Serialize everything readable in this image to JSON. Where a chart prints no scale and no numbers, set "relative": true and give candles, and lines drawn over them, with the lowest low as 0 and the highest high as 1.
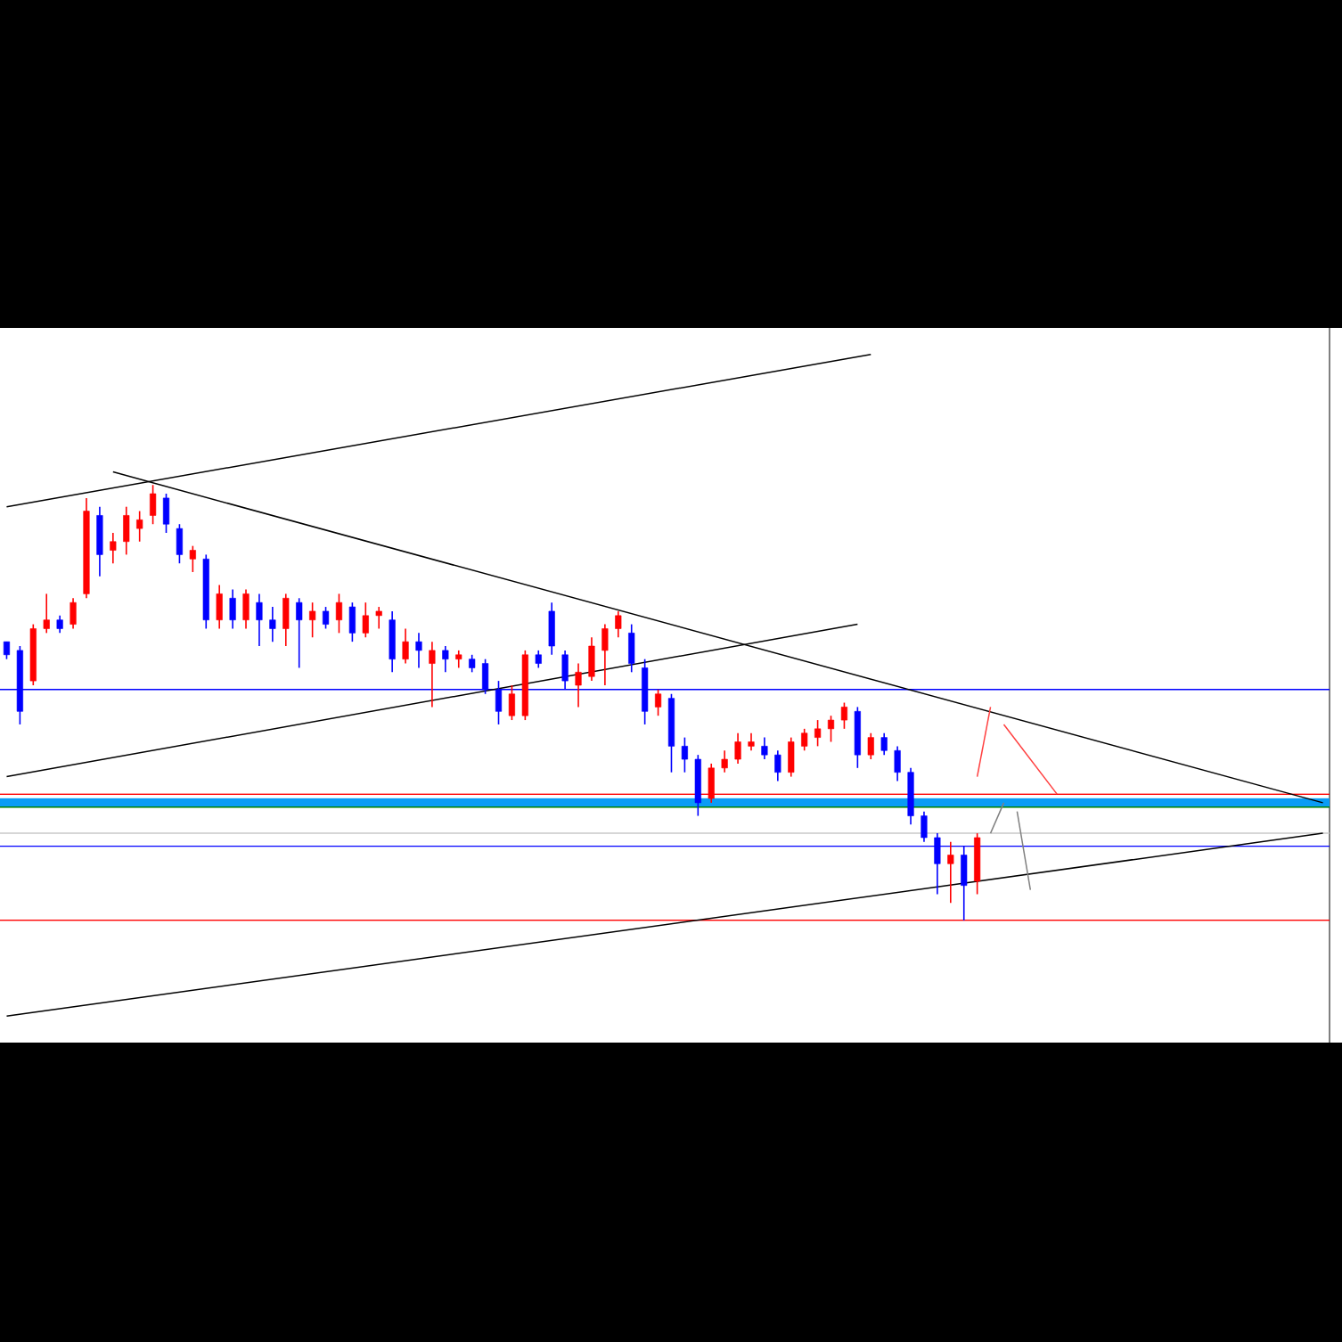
{
  "chart_data": {
    "type": "candlestick",
    "relative": true,
    "categories": [
      null,
      null,
      null,
      null,
      null,
      null,
      null,
      null,
      null,
      null,
      null,
      null,
      null,
      null,
      null,
      null,
      null,
      null,
      null,
      null,
      null,
      null,
      null,
      null,
      null,
      null,
      null,
      null,
      null,
      null,
      null,
      null,
      null,
      null,
      null,
      null,
      null,
      null,
      null,
      null,
      null,
      null,
      null,
      null,
      null,
      null,
      null,
      null,
      null,
      null,
      null,
      null,
      null,
      null,
      null,
      null,
      null,
      null,
      null,
      null,
      null,
      null,
      null,
      null,
      null,
      null,
      null,
      null,
      null,
      null,
      null,
      null,
      null,
      null,
      null,
      null,
      null,
      null,
      null,
      null,
      null,
      null,
      null,
      null,
      null,
      null,
      null,
      null,
      null,
      null,
      null,
      null,
      null,
      null,
      null,
      null,
      null,
      null,
      null,
      null
    ],
    "ohlc": [
      [
        0.64,
        0.64,
        0.6,
        0.61
      ],
      [
        0.62,
        0.63,
        0.45,
        0.48
      ],
      [
        0.55,
        0.68,
        0.54,
        0.67
      ],
      [
        0.67,
        0.75,
        0.66,
        0.69
      ],
      [
        0.69,
        0.7,
        0.66,
        0.67
      ],
      [
        0.68,
        0.74,
        0.67,
        0.73
      ],
      [
        0.75,
        0.97,
        0.74,
        0.94
      ],
      [
        0.93,
        0.95,
        0.79,
        0.84
      ],
      [
        0.85,
        0.89,
        0.82,
        0.87
      ],
      [
        0.87,
        0.95,
        0.84,
        0.93
      ],
      [
        0.9,
        0.94,
        0.87,
        0.92
      ],
      [
        0.93,
        1.0,
        0.91,
        0.98
      ],
      [
        0.97,
        0.98,
        0.89,
        0.91
      ],
      [
        0.9,
        0.91,
        0.82,
        0.84
      ],
      [
        0.83,
        0.86,
        0.8,
        0.85
      ],
      [
        0.83,
        0.84,
        0.67,
        0.69
      ],
      [
        0.69,
        0.77,
        0.67,
        0.75
      ],
      [
        0.74,
        0.76,
        0.67,
        0.69
      ],
      [
        0.69,
        0.76,
        0.67,
        0.75
      ],
      [
        0.73,
        0.75,
        0.63,
        0.69
      ],
      [
        0.69,
        0.72,
        0.64,
        0.67
      ],
      [
        0.67,
        0.75,
        0.63,
        0.74
      ],
      [
        0.73,
        0.74,
        0.58,
        0.69
      ],
      [
        0.69,
        0.73,
        0.65,
        0.71
      ],
      [
        0.71,
        0.72,
        0.67,
        0.68
      ],
      [
        0.69,
        0.75,
        0.66,
        0.73
      ],
      [
        0.72,
        0.73,
        0.64,
        0.66
      ],
      [
        0.66,
        0.73,
        0.65,
        0.7
      ],
      [
        0.7,
        0.72,
        0.67,
        0.71
      ],
      [
        0.69,
        0.71,
        0.57,
        0.6
      ],
      [
        0.6,
        0.67,
        0.59,
        0.64
      ],
      [
        0.64,
        0.66,
        0.58,
        0.62
      ],
      [
        0.59,
        0.64,
        0.49,
        0.62
      ],
      [
        0.62,
        0.63,
        0.57,
        0.6
      ],
      [
        0.6,
        0.62,
        0.58,
        0.61
      ],
      [
        0.6,
        0.61,
        0.57,
        0.58
      ],
      [
        0.59,
        0.6,
        0.52,
        0.53
      ],
      [
        0.53,
        0.55,
        0.45,
        0.48
      ],
      [
        0.47,
        0.54,
        0.46,
        0.52
      ],
      [
        0.47,
        0.62,
        0.46,
        0.61
      ],
      [
        0.61,
        0.62,
        0.58,
        0.59
      ],
      [
        0.71,
        0.73,
        0.61,
        0.63
      ],
      [
        0.61,
        0.62,
        0.53,
        0.55
      ],
      [
        0.54,
        0.59,
        0.49,
        0.57
      ],
      [
        0.56,
        0.65,
        0.55,
        0.63
      ],
      [
        0.62,
        0.68,
        0.54,
        0.67
      ],
      [
        0.67,
        0.71,
        0.65,
        0.7
      ],
      [
        0.66,
        0.68,
        0.57,
        0.59
      ],
      [
        0.58,
        0.6,
        0.45,
        0.48
      ],
      [
        0.49,
        0.53,
        0.47,
        0.52
      ],
      [
        0.51,
        0.52,
        0.34,
        0.4
      ],
      [
        0.4,
        0.42,
        0.34,
        0.37
      ],
      [
        0.37,
        0.38,
        0.24,
        0.27
      ],
      [
        0.28,
        0.36,
        0.27,
        0.35
      ],
      [
        0.35,
        0.39,
        0.34,
        0.37
      ],
      [
        0.37,
        0.43,
        0.36,
        0.41
      ],
      [
        0.4,
        0.43,
        0.39,
        0.41
      ],
      [
        0.4,
        0.42,
        0.37,
        0.38
      ],
      [
        0.38,
        0.39,
        0.32,
        0.34
      ],
      [
        0.34,
        0.42,
        0.33,
        0.41
      ],
      [
        0.4,
        0.44,
        0.39,
        0.43
      ],
      [
        0.42,
        0.46,
        0.4,
        0.44
      ],
      [
        0.44,
        0.47,
        0.41,
        0.46
      ],
      [
        0.46,
        0.5,
        0.44,
        0.49
      ],
      [
        0.48,
        0.49,
        0.35,
        0.38
      ],
      [
        0.38,
        0.43,
        0.37,
        0.42
      ],
      [
        0.42,
        0.43,
        0.38,
        0.39
      ],
      [
        0.39,
        0.4,
        0.32,
        0.34
      ],
      [
        0.34,
        0.35,
        0.22,
        0.24
      ],
      [
        0.24,
        0.25,
        0.18,
        0.19
      ],
      [
        0.19,
        0.2,
        0.06,
        0.13
      ],
      [
        0.13,
        0.18,
        0.04,
        0.15
      ],
      [
        0.15,
        0.17,
        0.0,
        0.08
      ],
      [
        0.09,
        0.2,
        0.06,
        0.19
      ],
      null,
      null,
      null,
      null,
      null,
      null,
      null,
      null,
      null,
      null,
      null,
      null,
      null,
      null,
      null,
      null,
      null,
      null,
      null,
      null,
      null,
      null,
      null,
      null,
      null,
      null
    ],
    "colors": [
      "#0000ff",
      "#0000ff",
      "#ff0000",
      "#ff0000",
      "#0000ff",
      "#ff0000",
      "#ff0000",
      "#0000ff",
      "#ff0000",
      "#ff0000",
      "#ff0000",
      "#ff0000",
      "#0000ff",
      "#0000ff",
      "#ff0000",
      "#0000ff",
      "#ff0000",
      "#0000ff",
      "#ff0000",
      "#0000ff",
      "#0000ff",
      "#ff0000",
      "#0000ff",
      "#ff0000",
      "#0000ff",
      "#ff0000",
      "#0000ff",
      "#ff0000",
      "#ff0000",
      "#0000ff",
      "#ff0000",
      "#0000ff",
      "#ff0000",
      "#0000ff",
      "#ff0000",
      "#0000ff",
      "#0000ff",
      "#0000ff",
      "#ff0000",
      "#ff0000",
      "#0000ff",
      "#0000ff",
      "#0000ff",
      "#ff0000",
      "#ff0000",
      "#ff0000",
      "#ff0000",
      "#0000ff",
      "#0000ff",
      "#ff0000",
      "#0000ff",
      "#0000ff",
      "#0000ff",
      "#ff0000",
      "#ff0000",
      "#ff0000",
      "#ff0000",
      "#0000ff",
      "#0000ff",
      "#ff0000",
      "#ff0000",
      "#ff0000",
      "#ff0000",
      "#ff0000",
      "#0000ff",
      "#ff0000",
      "#0000ff",
      "#0000ff",
      "#0000ff",
      "#0000ff",
      "#0000ff",
      "#ff0000",
      "#0000ff",
      "#ff0000",
      null,
      null,
      null,
      null,
      null,
      null,
      null,
      null,
      null,
      null,
      null,
      null,
      null,
      null,
      null,
      null,
      null,
      null,
      null,
      null,
      null,
      null,
      null,
      null,
      null,
      null
    ],
    "series": [
      {
        "type": "line",
        "color": "#000000",
        "values": [
          0.95,
          null,
          null,
          null,
          null,
          null,
          null,
          null,
          null,
          null,
          null,
          null,
          null,
          null,
          null,
          null,
          null,
          null,
          null,
          null,
          null,
          null,
          null,
          null,
          null,
          null,
          null,
          null,
          null,
          null,
          null,
          null,
          null,
          null,
          null,
          null,
          null,
          null,
          null,
          null,
          null,
          null,
          null,
          null,
          null,
          null,
          null,
          null,
          null,
          null,
          null,
          null,
          null,
          null,
          null,
          null,
          null,
          null,
          null,
          null,
          null,
          null,
          null,
          null,
          null,
          1.3,
          null,
          null,
          null,
          null,
          null,
          null,
          null,
          null,
          null,
          null,
          null,
          null,
          null,
          null,
          null,
          null,
          null,
          null,
          null,
          null,
          null,
          null,
          null,
          null,
          null,
          null,
          null,
          null,
          null,
          null,
          null,
          null,
          null,
          null
        ]
      },
      {
        "type": "line",
        "color": "#000000",
        "values": [
          -0.22,
          null,
          null,
          null,
          null,
          null,
          null,
          null,
          null,
          null,
          null,
          null,
          null,
          null,
          null,
          null,
          null,
          null,
          null,
          null,
          null,
          null,
          null,
          null,
          null,
          null,
          null,
          null,
          null,
          null,
          null,
          null,
          null,
          null,
          null,
          null,
          null,
          null,
          null,
          null,
          null,
          null,
          null,
          null,
          null,
          null,
          null,
          null,
          null,
          null,
          null,
          null,
          null,
          null,
          null,
          null,
          null,
          null,
          null,
          null,
          null,
          null,
          null,
          null,
          null,
          null,
          null,
          null,
          null,
          null,
          null,
          null,
          null,
          null,
          null,
          null,
          null,
          null,
          null,
          null,
          null,
          null,
          null,
          null,
          null,
          null,
          null,
          null,
          null,
          null,
          null,
          null,
          null,
          null,
          null,
          null,
          null,
          null,
          null,
          0.2
        ]
      },
      {
        "type": "line",
        "color": "#000000",
        "values": [
          null,
          null,
          null,
          null,
          null,
          null,
          null,
          null,
          1.03,
          null,
          null,
          null,
          null,
          null,
          null,
          null,
          null,
          null,
          null,
          null,
          null,
          null,
          null,
          null,
          null,
          null,
          null,
          null,
          null,
          null,
          null,
          null,
          null,
          null,
          null,
          null,
          null,
          null,
          null,
          null,
          null,
          null,
          null,
          null,
          null,
          null,
          null,
          null,
          null,
          null,
          null,
          null,
          null,
          null,
          null,
          null,
          null,
          null,
          null,
          null,
          null,
          null,
          null,
          null,
          null,
          null,
          null,
          null,
          null,
          null,
          null,
          null,
          null,
          null,
          null,
          null,
          null,
          null,
          null,
          null,
          null,
          null,
          null,
          null,
          null,
          null,
          null,
          null,
          null,
          null,
          null,
          null,
          null,
          null,
          null,
          null,
          null,
          null,
          null,
          0.27
        ]
      },
      {
        "type": "line",
        "color": "#000000",
        "values": [
          0.33,
          null,
          null,
          null,
          null,
          null,
          null,
          null,
          null,
          null,
          null,
          null,
          null,
          null,
          null,
          null,
          null,
          null,
          null,
          null,
          null,
          null,
          null,
          null,
          null,
          null,
          null,
          null,
          null,
          null,
          null,
          null,
          null,
          null,
          null,
          null,
          null,
          null,
          null,
          null,
          null,
          null,
          null,
          null,
          null,
          null,
          null,
          null,
          null,
          null,
          null,
          null,
          null,
          null,
          null,
          null,
          null,
          null,
          null,
          null,
          null,
          null,
          null,
          null,
          0.68,
          null,
          null,
          null,
          null,
          null,
          null,
          null,
          null,
          null,
          null,
          null,
          null,
          null,
          null,
          null,
          null,
          null,
          null,
          null,
          null,
          null,
          null,
          null,
          null,
          null,
          null,
          null,
          null,
          null,
          null,
          null,
          null,
          null,
          null,
          null
        ]
      },
      {
        "type": "line",
        "color": "#ff4040",
        "values": [
          null,
          null,
          null,
          null,
          null,
          null,
          null,
          null,
          null,
          null,
          null,
          null,
          null,
          null,
          null,
          null,
          null,
          null,
          null,
          null,
          null,
          null,
          null,
          null,
          null,
          null,
          null,
          null,
          null,
          null,
          null,
          null,
          null,
          null,
          null,
          null,
          null,
          null,
          null,
          null,
          null,
          null,
          null,
          null,
          null,
          null,
          null,
          null,
          null,
          null,
          null,
          null,
          null,
          null,
          null,
          null,
          null,
          null,
          null,
          null,
          null,
          null,
          null,
          null,
          null,
          null,
          null,
          null,
          null,
          null,
          null,
          null,
          null,
          0.33,
          0.49,
          null,
          null,
          null,
          null,
          null,
          null,
          null,
          null,
          null,
          null,
          null,
          null,
          null,
          null,
          null,
          null,
          null,
          null,
          null,
          null,
          null,
          null,
          null,
          null,
          null
        ]
      },
      {
        "type": "line",
        "color": "#ff4040",
        "values": [
          null,
          null,
          null,
          null,
          null,
          null,
          null,
          null,
          null,
          null,
          null,
          null,
          null,
          null,
          null,
          null,
          null,
          null,
          null,
          null,
          null,
          null,
          null,
          null,
          null,
          null,
          null,
          null,
          null,
          null,
          null,
          null,
          null,
          null,
          null,
          null,
          null,
          null,
          null,
          null,
          null,
          null,
          null,
          null,
          null,
          null,
          null,
          null,
          null,
          null,
          null,
          null,
          null,
          null,
          null,
          null,
          null,
          null,
          null,
          null,
          null,
          null,
          null,
          null,
          null,
          null,
          null,
          null,
          null,
          null,
          null,
          null,
          null,
          null,
          null,
          0.45,
          null,
          null,
          null,
          0.29,
          null,
          null,
          null,
          null,
          null,
          null,
          null,
          null,
          null,
          null,
          null,
          null,
          null,
          null,
          null,
          null,
          null,
          null,
          null,
          null
        ]
      },
      {
        "type": "line",
        "color": "#808080",
        "values": [
          null,
          null,
          null,
          null,
          null,
          null,
          null,
          null,
          null,
          null,
          null,
          null,
          null,
          null,
          null,
          null,
          null,
          null,
          null,
          null,
          null,
          null,
          null,
          null,
          null,
          null,
          null,
          null,
          null,
          null,
          null,
          null,
          null,
          null,
          null,
          null,
          null,
          null,
          null,
          null,
          null,
          null,
          null,
          null,
          null,
          null,
          null,
          null,
          null,
          null,
          null,
          null,
          null,
          null,
          null,
          null,
          null,
          null,
          null,
          null,
          null,
          null,
          null,
          null,
          null,
          null,
          null,
          null,
          null,
          null,
          null,
          null,
          null,
          null,
          0.2,
          0.27,
          null,
          null,
          null,
          null,
          null,
          null,
          null,
          null,
          null,
          null,
          null,
          null,
          null,
          null,
          null,
          null,
          null,
          null,
          null,
          null,
          null,
          null,
          null,
          null
        ]
      },
      {
        "type": "line",
        "color": "#808080",
        "values": [
          null,
          null,
          null,
          null,
          null,
          null,
          null,
          null,
          null,
          null,
          null,
          null,
          null,
          null,
          null,
          null,
          null,
          null,
          null,
          null,
          null,
          null,
          null,
          null,
          null,
          null,
          null,
          null,
          null,
          null,
          null,
          null,
          null,
          null,
          null,
          null,
          null,
          null,
          null,
          null,
          null,
          null,
          null,
          null,
          null,
          null,
          null,
          null,
          null,
          null,
          null,
          null,
          null,
          null,
          null,
          null,
          null,
          null,
          null,
          null,
          null,
          null,
          null,
          null,
          null,
          null,
          null,
          null,
          null,
          null,
          null,
          null,
          null,
          null,
          null,
          null,
          0.25,
          0.07,
          null,
          null,
          null,
          null,
          null,
          null,
          null,
          null,
          null,
          null,
          null,
          null,
          null,
          null,
          null,
          null,
          null,
          null,
          null,
          null,
          null,
          null
        ]
      }
    ],
    "ref_lines": [
      {
        "axis": "y",
        "value": 0.53,
        "color": "#0000ff"
      },
      {
        "axis": "y",
        "value": 0.29,
        "color": "#ff0000"
      },
      {
        "axis": "y",
        "value": 0.26,
        "color": "#008000"
      },
      {
        "axis": "y",
        "value": 0.2,
        "color": "#c8c8c8"
      },
      {
        "axis": "y",
        "value": 0.17,
        "color": "#0000ff"
      },
      {
        "axis": "y",
        "value": 0.0,
        "color": "#ff0000"
      }
    ],
    "bands": [
      {
        "axis": "y",
        "from": 0.26,
        "to": 0.28,
        "color": "#0a9cf5"
      }
    ]
  }
}
